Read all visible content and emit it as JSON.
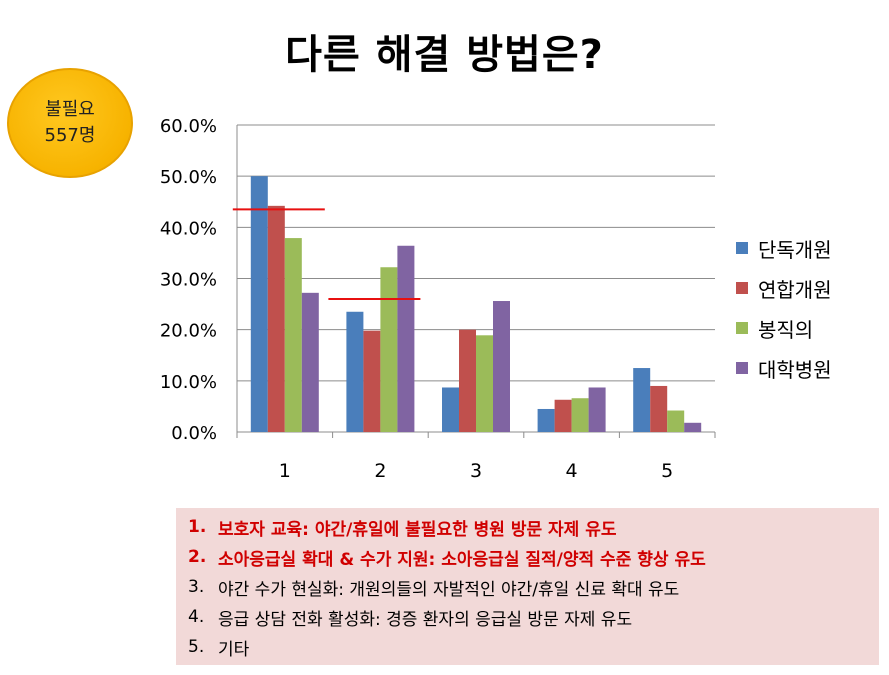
{
  "title": "다른 해결 방법은?",
  "badge": {
    "line1": "불필요",
    "line2": "557명"
  },
  "colors": {
    "단독개원": "#4a7ebb",
    "연합개원": "#c0504d",
    "봉직의": "#9bbb59",
    "대학병원": "#8064a2",
    "highlight_line": "#e81010",
    "badge": "#f7b300",
    "notes_bg": "#f2d9d8"
  },
  "chart_data": {
    "type": "bar",
    "categories": [
      "1",
      "2",
      "3",
      "4",
      "5"
    ],
    "series": [
      {
        "name": "단독개원",
        "values": [
          50.0,
          23.5,
          8.7,
          4.5,
          12.5
        ]
      },
      {
        "name": "연합개원",
        "values": [
          44.2,
          19.8,
          20.0,
          6.3,
          9.0
        ]
      },
      {
        "name": "봉직의",
        "values": [
          37.9,
          32.2,
          18.9,
          6.6,
          4.2
        ]
      },
      {
        "name": "대학병원",
        "values": [
          27.2,
          36.4,
          25.6,
          8.7,
          1.8
        ]
      }
    ],
    "reference_lines": [
      {
        "category": "1",
        "value": 43.5
      },
      {
        "category": "2",
        "value": 26.0
      }
    ],
    "ylim": [
      0,
      60
    ],
    "yticks": [
      "0.0%",
      "10.0%",
      "20.0%",
      "30.0%",
      "40.0%",
      "50.0%",
      "60.0%"
    ],
    "grid": true,
    "legend_position": "right"
  },
  "notes": [
    {
      "num": "1.",
      "text": "보호자 교육: 야간/휴일에 불필요한 병원 방문 자제 유도",
      "emphasis": true
    },
    {
      "num": "2.",
      "text": "소아응급실 확대 & 수가 지원: 소아응급실 질적/양적 수준 향상 유도",
      "emphasis": true
    },
    {
      "num": "3.",
      "text": "야간 수가 현실화: 개원의들의 자발적인 야간/휴일 신료 확대 유도",
      "emphasis": false
    },
    {
      "num": "4.",
      "text": "응급 상담 전화 활성화: 경증 환자의 응급실 방문 자제 유도",
      "emphasis": false
    },
    {
      "num": "5.",
      "text": "기타",
      "emphasis": false
    }
  ]
}
